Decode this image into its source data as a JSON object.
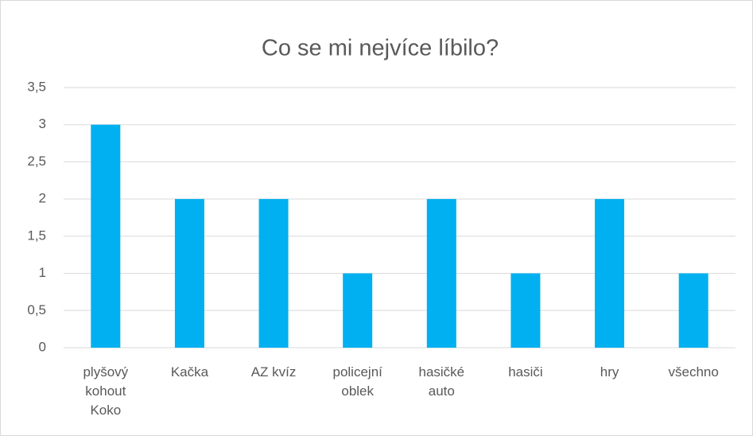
{
  "chart_data": {
    "type": "bar",
    "title": "Co se mi nejvíce líbilo?",
    "categories": [
      "plyšový kohout Koko",
      "Kačka",
      "AZ kvíz",
      "policejní oblek",
      "hasičké auto",
      "hasiči",
      "hry",
      "všechno"
    ],
    "values": [
      3,
      2,
      2,
      1,
      2,
      1,
      2,
      1
    ],
    "color": "#00b0f0",
    "ylim": [
      0,
      3.5
    ],
    "yticks": [
      0,
      {
        "value": 0.5,
        "label": "0,5"
      },
      1,
      {
        "value": 1.5,
        "label": "1,5"
      },
      2,
      {
        "value": 2.5,
        "label": "2,5"
      },
      3,
      {
        "value": 3.5,
        "label": "3,5"
      }
    ],
    "grid": true
  }
}
